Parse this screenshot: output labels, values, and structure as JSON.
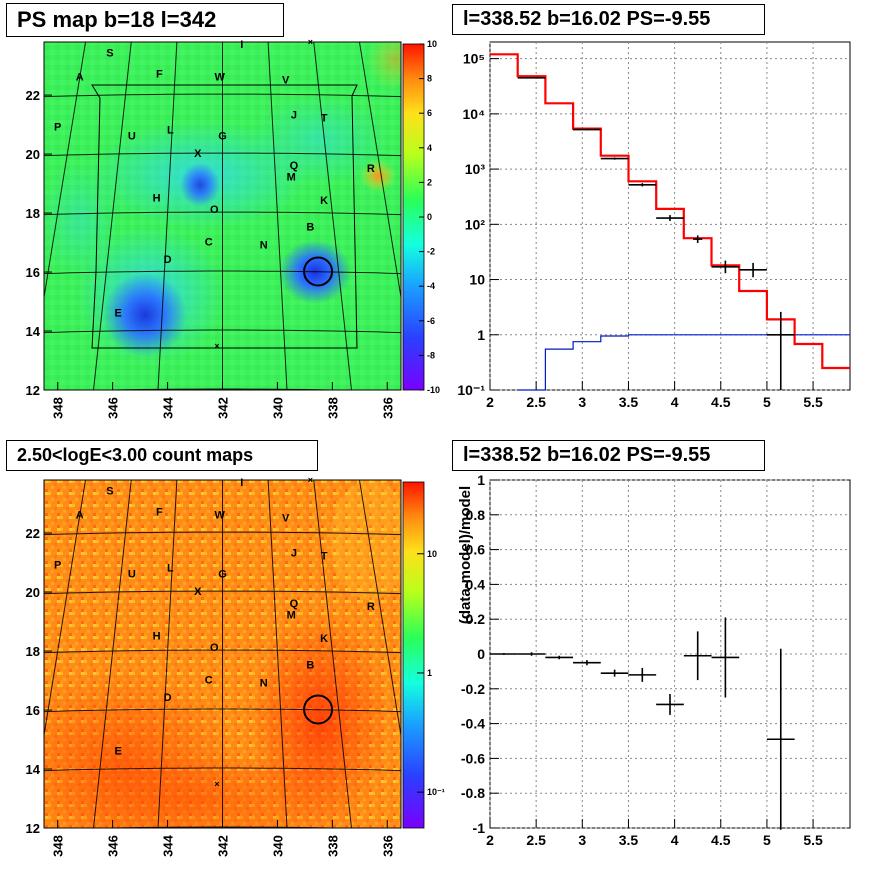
{
  "titles": {
    "map_top": "PS map b=18 l=342",
    "spec_top": "l=338.52 b=16.02 PS=-9.55",
    "map_bottom": "2.50<logE<3.00 count maps",
    "spec_bottom": "l=338.52 b=16.02 PS=-9.55"
  },
  "map_axes": {
    "lon_ticks": [
      "348",
      "346",
      "344",
      "342",
      "340",
      "338",
      "336"
    ],
    "lat_ticks": [
      "12",
      "14",
      "16",
      "18",
      "20",
      "22"
    ],
    "lon_range": [
      348.5,
      335.5
    ],
    "lat_range": [
      12,
      23.8
    ]
  },
  "source_labels": [
    {
      "id": "S",
      "l": 346.1,
      "b": 23.3
    },
    {
      "id": "I",
      "l": 341.3,
      "b": 23.6
    },
    {
      "id": "A",
      "l": 347.2,
      "b": 22.5
    },
    {
      "id": "F",
      "l": 344.3,
      "b": 22.6
    },
    {
      "id": "W",
      "l": 342.1,
      "b": 22.5
    },
    {
      "id": "V",
      "l": 339.7,
      "b": 22.4
    },
    {
      "id": "J",
      "l": 339.4,
      "b": 21.2
    },
    {
      "id": "T",
      "l": 338.3,
      "b": 21.1
    },
    {
      "id": "P",
      "l": 348.0,
      "b": 20.8
    },
    {
      "id": "U",
      "l": 345.3,
      "b": 20.5
    },
    {
      "id": "L",
      "l": 343.9,
      "b": 20.7
    },
    {
      "id": "G",
      "l": 342.0,
      "b": 20.5
    },
    {
      "id": "X",
      "l": 342.9,
      "b": 19.9
    },
    {
      "id": "Q",
      "l": 339.4,
      "b": 19.5
    },
    {
      "id": "M",
      "l": 339.5,
      "b": 19.1
    },
    {
      "id": "R",
      "l": 336.6,
      "b": 19.4
    },
    {
      "id": "H",
      "l": 344.4,
      "b": 18.4
    },
    {
      "id": "K",
      "l": 338.3,
      "b": 18.3
    },
    {
      "id": "O",
      "l": 342.3,
      "b": 18.0
    },
    {
      "id": "B",
      "l": 338.8,
      "b": 17.4
    },
    {
      "id": "C",
      "l": 342.5,
      "b": 16.9
    },
    {
      "id": "N",
      "l": 340.5,
      "b": 16.8
    },
    {
      "id": "D",
      "l": 344.0,
      "b": 16.3
    },
    {
      "id": "E",
      "l": 345.8,
      "b": 14.5
    }
  ],
  "source_marks": [
    {
      "l": 338.8,
      "b": 23.8
    },
    {
      "l": 342.2,
      "b": 13.5
    }
  ],
  "circle_position": {
    "l": 338.52,
    "b": 16.02
  },
  "colorbar_ps": {
    "ticks": [
      "10",
      "8",
      "6",
      "4",
      "2",
      "0",
      "-2",
      "-4",
      "-6",
      "-8",
      "-10"
    ],
    "range": [
      -10,
      10
    ]
  },
  "colorbar_counts": {
    "ticks": [
      {
        "value": 10,
        "label": "10"
      },
      {
        "value": 1,
        "label": "1"
      },
      {
        "value": 0.1,
        "label": "10⁻¹"
      }
    ],
    "range": [
      0.05,
      40
    ]
  },
  "chart_data": [
    {
      "type": "line",
      "log_y": true,
      "xlim": [
        2,
        5.9
      ],
      "ylim": [
        0.1,
        200000
      ],
      "xticks": [
        "2",
        "2.5",
        "3",
        "3.5",
        "4",
        "4.5",
        "5",
        "5.5"
      ],
      "yticks": [
        {
          "value": 0.1,
          "label": "10⁻¹"
        },
        {
          "value": 1,
          "label": "1"
        },
        {
          "value": 10,
          "label": "10"
        },
        {
          "value": 100,
          "label": "10²"
        },
        {
          "value": 1000,
          "label": "10³"
        },
        {
          "value": 10000,
          "label": "10⁴"
        },
        {
          "value": 100000,
          "label": "10⁵"
        }
      ],
      "model_red": {
        "edges": [
          2.0,
          2.3,
          2.6,
          2.9,
          3.2,
          3.5,
          3.8,
          4.1,
          4.4,
          4.7,
          5.0,
          5.3,
          5.6,
          5.9
        ],
        "values": [
          120000,
          48000,
          15500,
          5400,
          1750,
          600,
          190,
          56,
          18,
          6.2,
          1.9,
          0.68,
          0.25
        ]
      },
      "model_blue": {
        "edges": [
          2.3,
          2.6,
          2.9,
          3.2,
          3.5,
          5.9
        ],
        "values": [
          0.1,
          0.55,
          0.75,
          0.95,
          1.0
        ]
      },
      "data_points": [
        {
          "x": 2.45,
          "xerr": 0.15,
          "y": 45000,
          "ylo": 44500,
          "yhi": 45500
        },
        {
          "x": 3.05,
          "xerr": 0.15,
          "y": 5200,
          "ylo": 5050,
          "yhi": 5350
        },
        {
          "x": 3.35,
          "xerr": 0.15,
          "y": 1550,
          "ylo": 1480,
          "yhi": 1620
        },
        {
          "x": 3.65,
          "xerr": 0.15,
          "y": 520,
          "ylo": 485,
          "yhi": 555
        },
        {
          "x": 3.95,
          "xerr": 0.15,
          "y": 130,
          "ylo": 115,
          "yhi": 147
        },
        {
          "x": 4.25,
          "xerr": 0.05,
          "y": 54,
          "ylo": 46,
          "yhi": 63
        },
        {
          "x": 4.55,
          "xerr": 0.15,
          "y": 17,
          "ylo": 13,
          "yhi": 22
        },
        {
          "x": 4.85,
          "xerr": 0.15,
          "y": 15,
          "ylo": 11,
          "yhi": 20
        },
        {
          "x": 5.15,
          "xerr": 0.15,
          "y": 1.0,
          "ylo": 0.1,
          "yhi": 2.6
        }
      ]
    },
    {
      "type": "scatter",
      "ylabel": "(data-model)/model",
      "xlim": [
        2,
        5.9
      ],
      "ylim": [
        -1,
        1
      ],
      "xticks": [
        "2",
        "2.5",
        "3",
        "3.5",
        "4",
        "4.5",
        "5",
        "5.5"
      ],
      "yticks": [
        "-1",
        "-0.8",
        "-0.6",
        "-0.4",
        "-0.2",
        "0",
        "0.2",
        "0.4",
        "0.6",
        "0.8",
        "1"
      ],
      "points": [
        {
          "x": 2.15,
          "xerr": 0.15,
          "y": 0.0,
          "yerr": 0.005
        },
        {
          "x": 2.45,
          "xerr": 0.15,
          "y": 0.0,
          "yerr": 0.01
        },
        {
          "x": 2.75,
          "xerr": 0.15,
          "y": -0.02,
          "yerr": 0.01
        },
        {
          "x": 3.05,
          "xerr": 0.15,
          "y": -0.05,
          "yerr": 0.015
        },
        {
          "x": 3.35,
          "xerr": 0.15,
          "y": -0.11,
          "yerr": 0.02
        },
        {
          "x": 3.65,
          "xerr": 0.15,
          "y": -0.12,
          "yerr": 0.04
        },
        {
          "x": 3.95,
          "xerr": 0.15,
          "y": -0.29,
          "yerr": 0.06
        },
        {
          "x": 4.25,
          "xerr": 0.15,
          "y": -0.01,
          "yerr": 0.14
        },
        {
          "x": 4.55,
          "xerr": 0.15,
          "y": -0.02,
          "yerr": 0.23
        },
        {
          "x": 5.15,
          "xerr": 0.15,
          "y": -0.49,
          "yerr": 0.52
        }
      ]
    }
  ]
}
